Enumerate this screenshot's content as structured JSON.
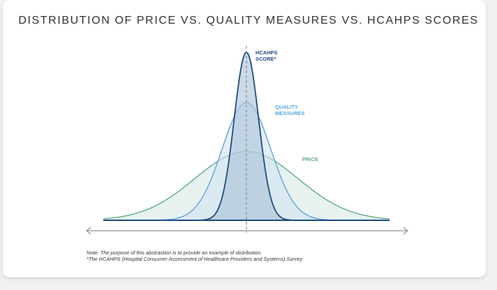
{
  "title": "DISTRIBUTION OF PRICE VS. QUALITY MEASURES VS. HCAHPS SCORES",
  "notes": [
    "Note: The purpose of this abstraction is to provide an example of distribution.",
    "*The HCAHPS (Hospital Consumer Assessment of Healthcare Providers and Systems) Survey"
  ],
  "chart_data": {
    "type": "area",
    "title": "DISTRIBUTION OF PRICE VS. QUALITY MEASURES VS. HCAHPS SCORES",
    "xlabel": "",
    "ylabel": "",
    "axis_ticks": false,
    "grid": false,
    "center_line": "dashed",
    "x_axis_arrows": "both",
    "series": [
      {
        "name": "PRICE",
        "label_lines": [
          "PRICE"
        ],
        "stroke": "#5fad8a",
        "fill": "#e6f1ec",
        "sigma": 0.36,
        "peak": 0.41
      },
      {
        "name": "QUALITY MEASURES",
        "label_lines": [
          "QUALITY",
          "MEASURES"
        ],
        "stroke": "#5aa6e0",
        "fill": "#cfe2f3",
        "sigma": 0.17,
        "peak": 0.7
      },
      {
        "name": "HCAHPS SCORE*",
        "label_lines": [
          "HCAHPS",
          "SCORE*"
        ],
        "stroke": "#1f4a82",
        "fill": "#a8c2d6",
        "sigma": 0.085,
        "peak": 1.0
      }
    ],
    "x_range": [
      -1,
      1
    ],
    "y_range": [
      0,
      1
    ]
  }
}
